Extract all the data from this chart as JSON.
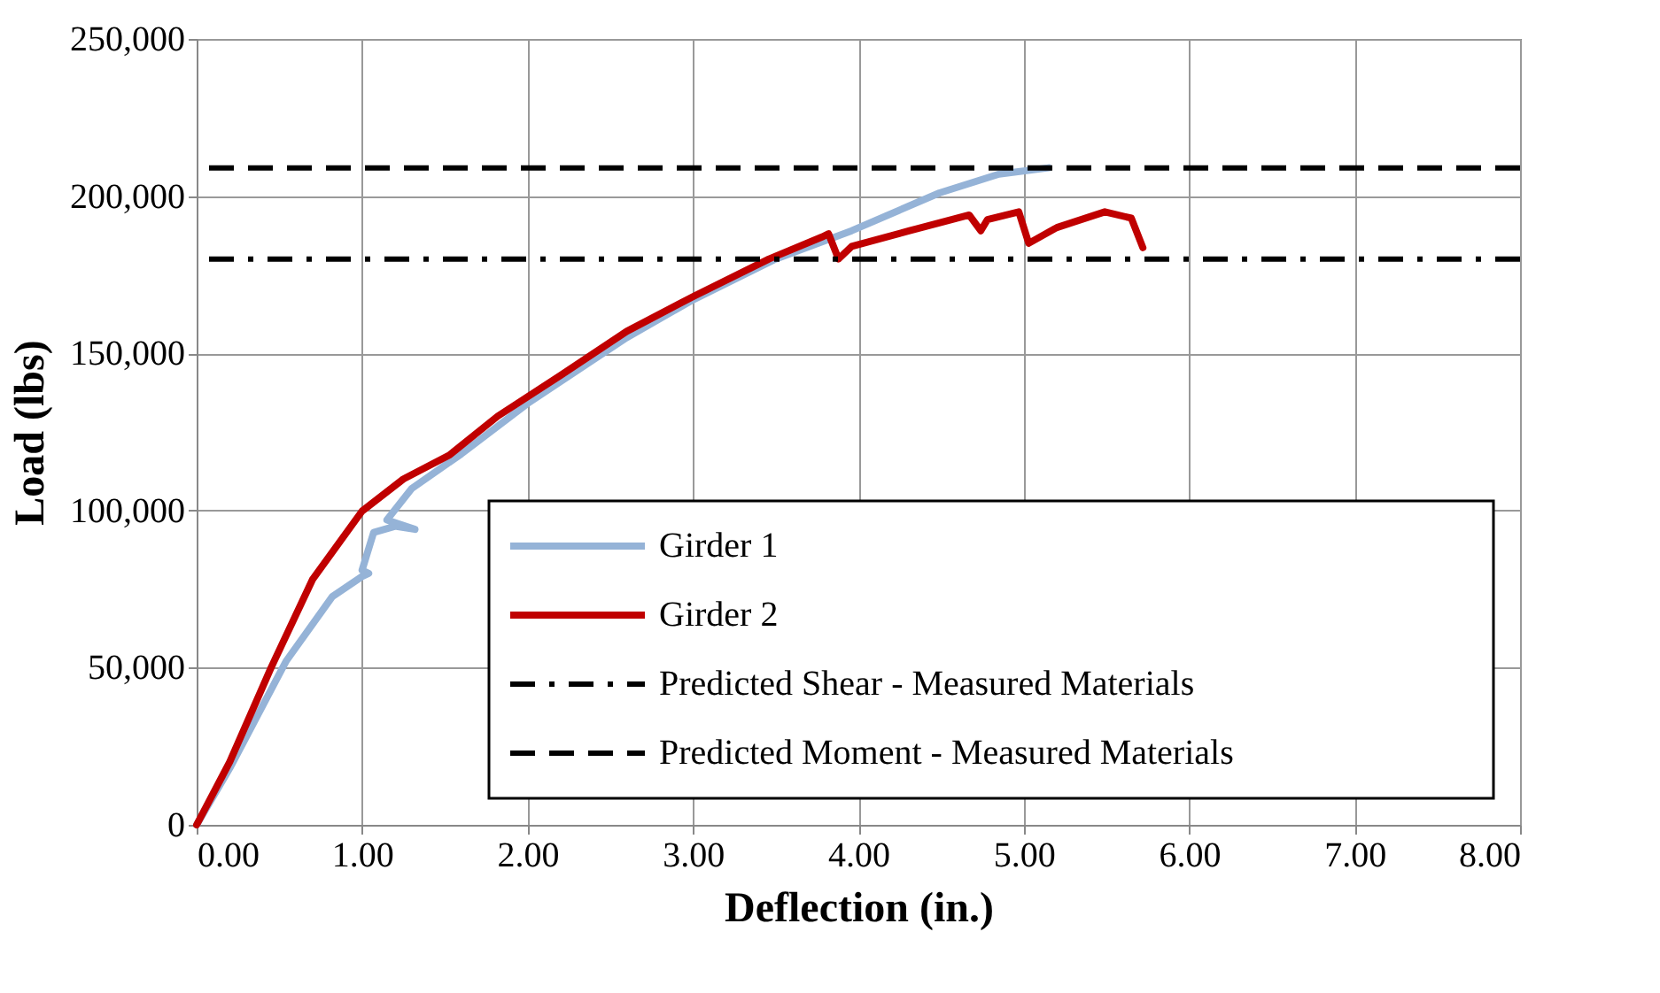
{
  "chart_data": {
    "type": "line",
    "xlabel": "Deflection (in.)",
    "ylabel": "Load (lbs)",
    "xlim": [
      0,
      8
    ],
    "xticks": [
      {
        "value": 0,
        "label": "0.00"
      },
      {
        "value": 1,
        "label": "1.00"
      },
      {
        "value": 2,
        "label": "2.00"
      },
      {
        "value": 3,
        "label": "3.00"
      },
      {
        "value": 4,
        "label": "4.00"
      },
      {
        "value": 5,
        "label": "5.00"
      },
      {
        "value": 6,
        "label": "6.00"
      },
      {
        "value": 7,
        "label": "7.00"
      },
      {
        "value": 8,
        "label": "8.00"
      }
    ],
    "ylim": [
      0,
      250000
    ],
    "yticks": [
      0,
      {
        "value": 50000,
        "label": "50,000"
      },
      {
        "value": 100000,
        "label": "100,000"
      },
      {
        "value": 150000,
        "label": "150,000"
      },
      {
        "value": 200000,
        "label": "200,000"
      },
      {
        "value": 250000,
        "label": "250,000"
      }
    ],
    "grid": true,
    "legend": "bottom right",
    "marker": "none",
    "line_style": "solid",
    "series": [
      {
        "name": "Girder 1",
        "color": "#95b3d7",
        "x": [
          0,
          0.2,
          0.54,
          0.82,
          1.0,
          1.04,
          1.0,
          1.07,
          1.2,
          1.32,
          1.15,
          1.3,
          1.6,
          2.0,
          2.6,
          3.0,
          3.5,
          3.96,
          4.49,
          4.85,
          5.15
        ],
        "values": [
          0,
          18000,
          52000,
          72600,
          79000,
          80000,
          81000,
          93000,
          95000,
          94000,
          97000,
          107000,
          118000,
          134000,
          155000,
          167000,
          180000,
          189000,
          201000,
          207000,
          209000
        ]
      },
      {
        "name": "Girder 2",
        "color": "#c00000",
        "x": [
          0,
          0.2,
          0.45,
          0.7,
          1.0,
          1.25,
          1.53,
          1.82,
          2.2,
          2.6,
          3.0,
          3.46,
          3.78,
          3.82,
          3.88,
          3.96,
          4.31,
          4.67,
          4.74,
          4.78,
          4.97,
          5.03,
          5.2,
          5.49,
          5.65,
          5.72
        ],
        "values": [
          0,
          20000,
          50000,
          78000,
          99800,
          110000,
          117700,
          130000,
          143000,
          157000,
          168000,
          180000,
          187000,
          188000,
          180000,
          184000,
          189000,
          194000,
          189000,
          192500,
          195000,
          185000,
          190000,
          195000,
          193000,
          183600
        ]
      }
    ],
    "ref_lines": [
      {
        "axis": "y",
        "value": 180000,
        "label": "Predicted Shear - Measured Materials",
        "color": "#000000",
        "line_style": "dashdot"
      },
      {
        "axis": "y",
        "value": 209000,
        "label": "Predicted Moment - Measured Materials",
        "color": "#000000",
        "line_style": "dashed"
      }
    ]
  }
}
